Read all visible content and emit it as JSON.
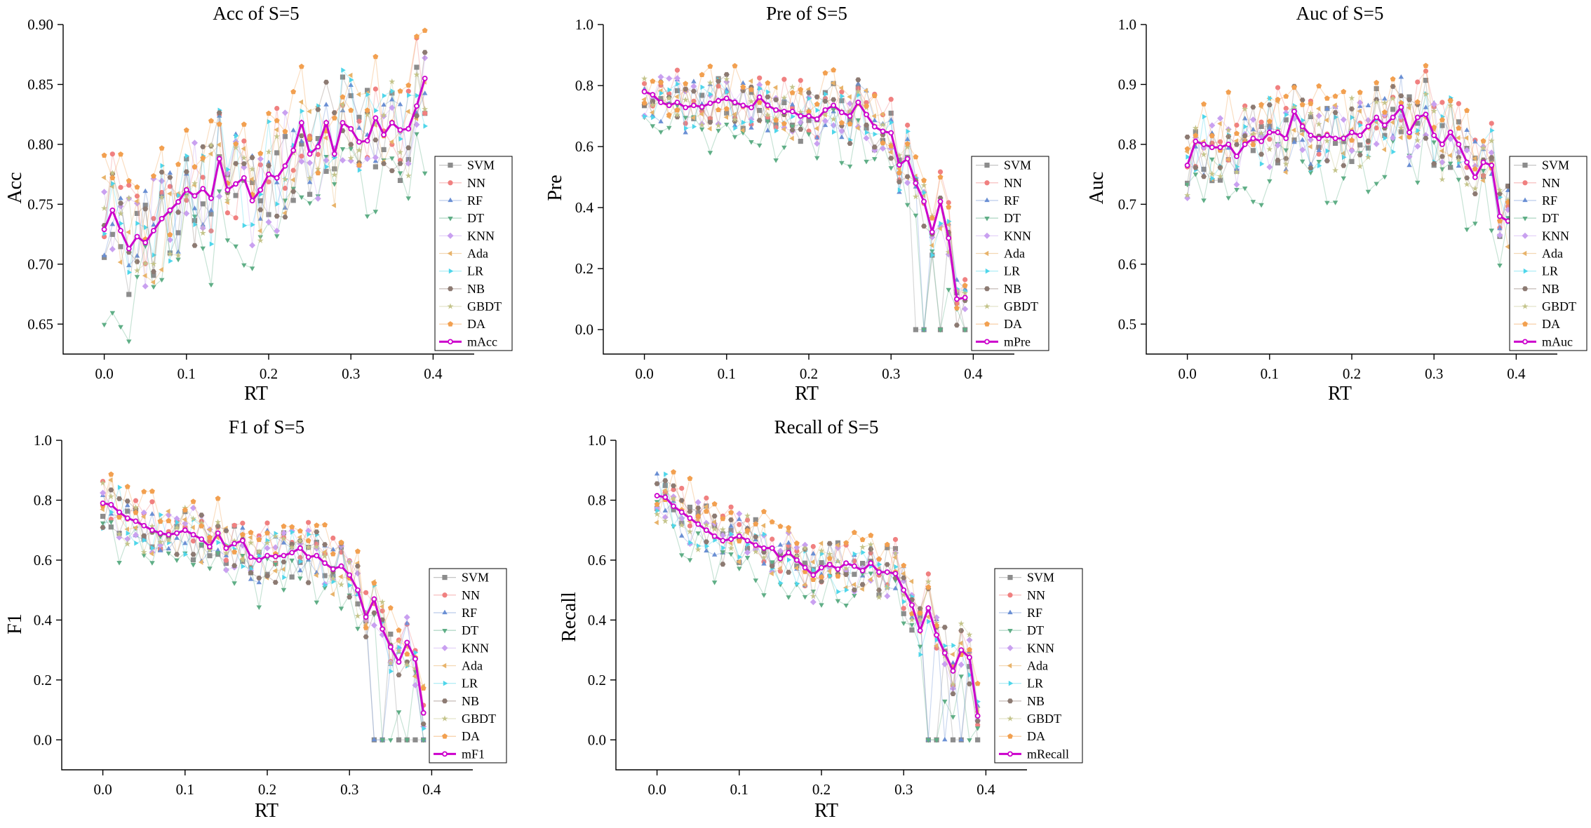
{
  "colors": {
    "SVM": "#8c8c8c",
    "NN": "#f08080",
    "RF": "#6a8fd4",
    "DT": "#5fae86",
    "KNN": "#c9a0f0",
    "Ada": "#e8b36a",
    "LR": "#4fd6ea",
    "NB": "#8c7a72",
    "GBDT": "#c4c48a",
    "DA": "#f2a050",
    "mean": "#cc00cc"
  },
  "chart_data": [
    {
      "id": "acc",
      "type": "line",
      "title": "Acc of S=5",
      "xlabel": "RT",
      "ylabel": "Acc",
      "xlim": [
        -0.05,
        0.45
      ],
      "ylim": [
        0.625,
        0.9
      ],
      "xticks": [
        0.0,
        0.1,
        0.2,
        0.3,
        0.4
      ],
      "xticklabels": [
        "0.0",
        "0.1",
        "0.2",
        "0.3",
        "0.4"
      ],
      "yticks": [
        0.65,
        0.7,
        0.75,
        0.8,
        0.85,
        0.9
      ],
      "yticklabels": [
        "0.65",
        "0.70",
        "0.75",
        "0.80",
        "0.85",
        "0.90"
      ],
      "legend": [
        "SVM",
        "NN",
        "RF",
        "DT",
        "KNN",
        "Ada",
        "LR",
        "NB",
        "GBDT",
        "DA",
        "mAcc"
      ],
      "mean_values": [
        0.729,
        0.745,
        0.728,
        0.713,
        0.723,
        0.718,
        0.728,
        0.738,
        0.745,
        0.752,
        0.762,
        0.757,
        0.763,
        0.755,
        0.788,
        0.762,
        0.767,
        0.772,
        0.753,
        0.762,
        0.775,
        0.772,
        0.782,
        0.795,
        0.818,
        0.792,
        0.798,
        0.818,
        0.792,
        0.818,
        0.813,
        0.802,
        0.803,
        0.822,
        0.808,
        0.818,
        0.812,
        0.813,
        0.832,
        0.855
      ],
      "seed": 11,
      "start": 0.745,
      "end": 0.85,
      "spread": 0.045,
      "drop": 0
    },
    {
      "id": "pre",
      "type": "line",
      "title": "Pre of S=5",
      "xlabel": "RT",
      "ylabel": "Pre",
      "xlim": [
        -0.05,
        0.45
      ],
      "ylim": [
        -0.08,
        1.0
      ],
      "xticks": [
        0.0,
        0.1,
        0.2,
        0.3,
        0.4
      ],
      "xticklabels": [
        "0.0",
        "0.1",
        "0.2",
        "0.3",
        "0.4"
      ],
      "yticks": [
        0.0,
        0.2,
        0.4,
        0.6,
        0.8,
        1.0
      ],
      "yticklabels": [
        "0.0",
        "0.2",
        "0.4",
        "0.6",
        "0.8",
        "1.0"
      ],
      "legend": [
        "SVM",
        "NN",
        "RF",
        "DT",
        "KNN",
        "Ada",
        "LR",
        "NB",
        "GBDT",
        "DA",
        "mPre"
      ],
      "mean_values": [
        0.78,
        0.77,
        0.745,
        0.735,
        0.745,
        0.728,
        0.735,
        0.73,
        0.742,
        0.75,
        0.758,
        0.745,
        0.735,
        0.728,
        0.762,
        0.735,
        0.72,
        0.715,
        0.715,
        0.7,
        0.7,
        0.69,
        0.72,
        0.735,
        0.712,
        0.7,
        0.745,
        0.705,
        0.665,
        0.65,
        0.645,
        0.54,
        0.56,
        0.48,
        0.42,
        0.32,
        0.42,
        0.3,
        0.1,
        0.105
      ],
      "seed": 23,
      "start": 0.78,
      "end": 0.66,
      "spread": 0.09,
      "drop": 1
    },
    {
      "id": "auc",
      "type": "line",
      "title": "Auc of S=5",
      "xlabel": "RT",
      "ylabel": "Auc",
      "xlim": [
        -0.05,
        0.45
      ],
      "ylim": [
        0.45,
        1.0
      ],
      "xticks": [
        0.0,
        0.1,
        0.2,
        0.3,
        0.4
      ],
      "xticklabels": [
        "0.0",
        "0.1",
        "0.2",
        "0.3",
        "0.4"
      ],
      "yticks": [
        0.5,
        0.6,
        0.7,
        0.8,
        0.9,
        1.0
      ],
      "yticklabels": [
        "0.5",
        "0.6",
        "0.7",
        "0.8",
        "0.9",
        "1.0"
      ],
      "legend": [
        "SVM",
        "NN",
        "RF",
        "DT",
        "KNN",
        "Ada",
        "LR",
        "NB",
        "GBDT",
        "DA",
        "mAuc"
      ],
      "mean_values": [
        0.765,
        0.805,
        0.8,
        0.795,
        0.795,
        0.8,
        0.78,
        0.8,
        0.81,
        0.805,
        0.82,
        0.82,
        0.81,
        0.855,
        0.83,
        0.815,
        0.81,
        0.815,
        0.81,
        0.81,
        0.82,
        0.815,
        0.83,
        0.845,
        0.832,
        0.845,
        0.862,
        0.82,
        0.845,
        0.85,
        0.815,
        0.8,
        0.82,
        0.8,
        0.77,
        0.745,
        0.77,
        0.765,
        0.68,
        0.672
      ],
      "seed": 37,
      "start": 0.8,
      "end": 0.78,
      "spread": 0.06,
      "drop": 0
    },
    {
      "id": "f1",
      "type": "line",
      "title": "F1 of S=5",
      "xlabel": "RT",
      "ylabel": "F1",
      "xlim": [
        -0.05,
        0.45
      ],
      "ylim": [
        -0.1,
        1.0
      ],
      "xticks": [
        0.0,
        0.1,
        0.2,
        0.3,
        0.4
      ],
      "xticklabels": [
        "0.0",
        "0.1",
        "0.2",
        "0.3",
        "0.4"
      ],
      "yticks": [
        0.0,
        0.2,
        0.4,
        0.6,
        0.8,
        1.0
      ],
      "yticklabels": [
        "0.0",
        "0.2",
        "0.4",
        "0.6",
        "0.8",
        "1.0"
      ],
      "legend": [
        "SVM",
        "NN",
        "RF",
        "DT",
        "KNN",
        "Ada",
        "LR",
        "NB",
        "GBDT",
        "DA",
        "mF1"
      ],
      "mean_values": [
        0.79,
        0.785,
        0.76,
        0.74,
        0.73,
        0.715,
        0.7,
        0.69,
        0.685,
        0.69,
        0.7,
        0.685,
        0.67,
        0.645,
        0.69,
        0.64,
        0.655,
        0.665,
        0.61,
        0.6,
        0.615,
        0.612,
        0.615,
        0.625,
        0.64,
        0.61,
        0.615,
        0.59,
        0.57,
        0.58,
        0.55,
        0.5,
        0.41,
        0.47,
        0.37,
        0.31,
        0.26,
        0.325,
        0.27,
        0.09
      ],
      "seed": 53,
      "start": 0.79,
      "end": 0.56,
      "spread": 0.09,
      "drop": 1
    },
    {
      "id": "recall",
      "type": "line",
      "title": "Recall of S=5",
      "xlabel": "RT",
      "ylabel": "Recall",
      "xlim": [
        -0.05,
        0.45
      ],
      "ylim": [
        -0.1,
        1.0
      ],
      "xticks": [
        0.0,
        0.1,
        0.2,
        0.3,
        0.4
      ],
      "xticklabels": [
        "0.0",
        "0.1",
        "0.2",
        "0.3",
        "0.4"
      ],
      "yticks": [
        0.0,
        0.2,
        0.4,
        0.6,
        0.8,
        1.0
      ],
      "yticklabels": [
        "0.0",
        "0.2",
        "0.4",
        "0.6",
        "0.8",
        "1.0"
      ],
      "legend": [
        "SVM",
        "NN",
        "RF",
        "DT",
        "KNN",
        "Ada",
        "LR",
        "NB",
        "GBDT",
        "DA",
        "mRecall"
      ],
      "mean_values": [
        0.815,
        0.81,
        0.78,
        0.76,
        0.74,
        0.72,
        0.7,
        0.68,
        0.665,
        0.67,
        0.68,
        0.665,
        0.65,
        0.64,
        0.64,
        0.605,
        0.625,
        0.6,
        0.575,
        0.55,
        0.575,
        0.585,
        0.57,
        0.59,
        0.58,
        0.565,
        0.59,
        0.56,
        0.56,
        0.555,
        0.5,
        0.45,
        0.365,
        0.44,
        0.35,
        0.29,
        0.23,
        0.3,
        0.275,
        0.08
      ],
      "seed": 71,
      "start": 0.82,
      "end": 0.53,
      "spread": 0.09,
      "drop": 1
    }
  ]
}
